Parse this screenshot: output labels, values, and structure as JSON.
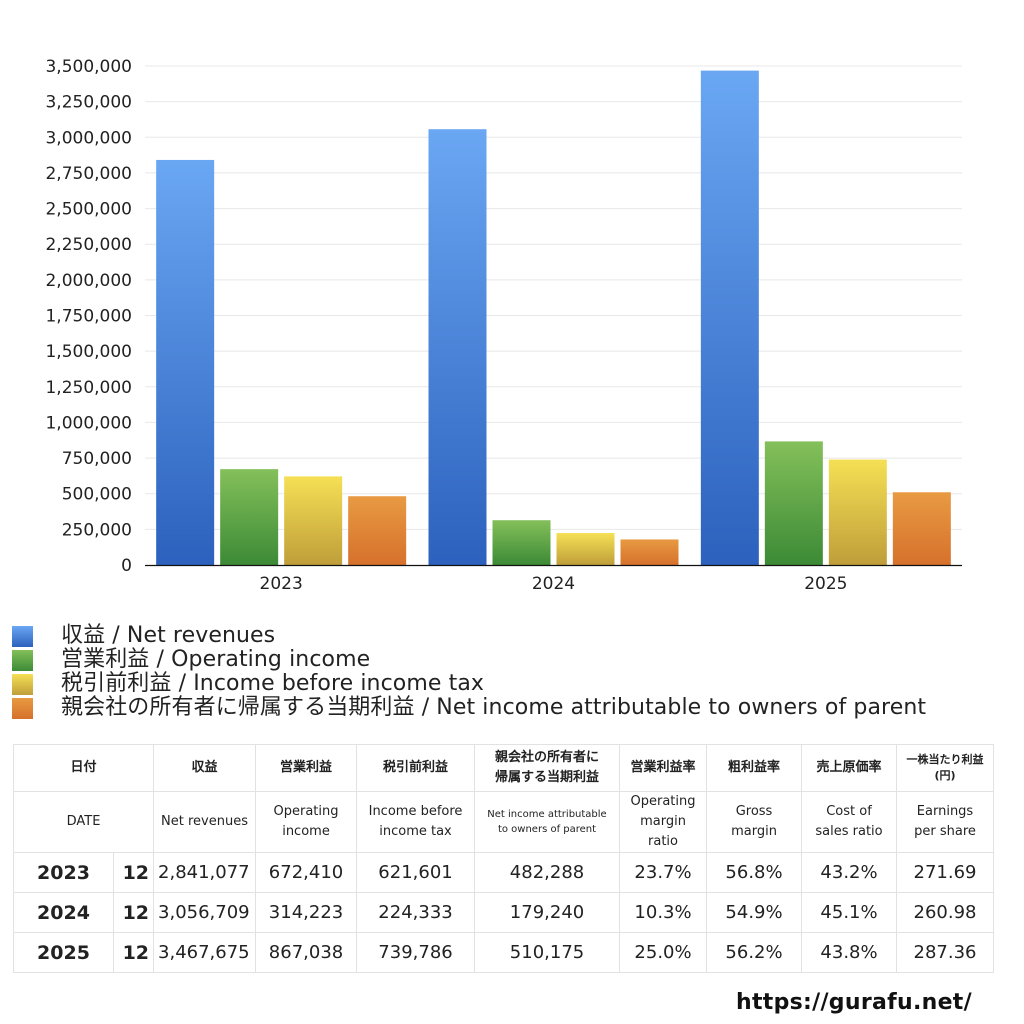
{
  "chart_data": {
    "type": "bar",
    "title": "",
    "xlabel": "",
    "ylabel": "",
    "categories": [
      "2023",
      "2024",
      "2025"
    ],
    "ylim": [
      0,
      3500000
    ],
    "yticks": [
      0,
      250000,
      500000,
      750000,
      1000000,
      1250000,
      1500000,
      1750000,
      2000000,
      2250000,
      2500000,
      2750000,
      3000000,
      3250000,
      3500000
    ],
    "ytick_labels": [
      "0",
      "250,000",
      "500,000",
      "750,000",
      "1,000,000",
      "1,250,000",
      "1,500,000",
      "1,750,000",
      "2,000,000",
      "2,250,000",
      "2,500,000",
      "2,750,000",
      "3,000,000",
      "3,250,000",
      "3,500,000"
    ],
    "grid": true,
    "legend_position": "bottom-left",
    "series": [
      {
        "name": "収益 / Net revenues",
        "values": [
          2841077,
          3056709,
          3467675
        ],
        "color_top": "#6aa7f3",
        "color_bottom": "#2c61bd"
      },
      {
        "name": "営業利益 / Operating income",
        "values": [
          672410,
          314223,
          867038
        ],
        "color_top": "#84c05a",
        "color_bottom": "#3c8a36"
      },
      {
        "name": "税引前利益 / Income before income tax",
        "values": [
          621601,
          224333,
          739786
        ],
        "color_top": "#f5e054",
        "color_bottom": "#bf9e3a"
      },
      {
        "name": "親会社の所有者に帰属する当期利益 / Net income attributable to owners of parent",
        "values": [
          482288,
          179240,
          510175
        ],
        "color_top": "#e89a42",
        "color_bottom": "#d6712c"
      }
    ]
  },
  "table": {
    "header_jp": {
      "date": "日付",
      "revenue": "収益",
      "operating_income": "営業利益",
      "pretax_income": "税引前利益",
      "net_income": "親会社の所有者に帰属する当期利益",
      "operating_margin": "営業利益率",
      "gross_margin": "粗利益率",
      "cost_ratio": "売上原価率",
      "eps": "一株当たり利益(円)"
    },
    "header_en": {
      "date": "DATE",
      "revenue": "Net revenues",
      "operating_income": "Operating income",
      "pretax_income": "Income before income tax",
      "net_income": "Net income attributable to owners of parent",
      "operating_margin": "Operating margin ratio",
      "gross_margin": "Gross margin",
      "cost_ratio": "Cost of sales ratio",
      "eps": "Earnings per share"
    },
    "rows": [
      {
        "year": "2023",
        "month": "12",
        "revenue": "2,841,077",
        "operating_income": "672,410",
        "pretax_income": "621,601",
        "net_income": "482,288",
        "operating_margin": "23.7%",
        "gross_margin": "56.8%",
        "cost_ratio": "43.2%",
        "eps": "271.69"
      },
      {
        "year": "2024",
        "month": "12",
        "revenue": "3,056,709",
        "operating_income": "314,223",
        "pretax_income": "224,333",
        "net_income": "179,240",
        "operating_margin": "10.3%",
        "gross_margin": "54.9%",
        "cost_ratio": "45.1%",
        "eps": "260.98"
      },
      {
        "year": "2025",
        "month": "12",
        "revenue": "3,467,675",
        "operating_income": "867,038",
        "pretax_income": "739,786",
        "net_income": "510,175",
        "operating_margin": "25.0%",
        "gross_margin": "56.2%",
        "cost_ratio": "43.8%",
        "eps": "287.36"
      }
    ]
  },
  "footer": {
    "url": "https://gurafu.net/"
  }
}
